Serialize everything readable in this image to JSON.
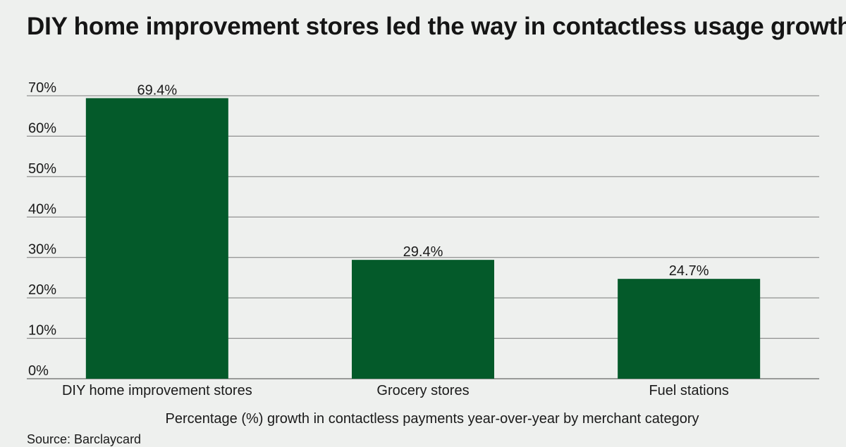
{
  "chart_data": {
    "type": "bar",
    "title": "DIY home improvement stores led the way in contactless usage growth",
    "categories": [
      "DIY home improvement stores",
      "Grocery stores",
      "Fuel stations"
    ],
    "values": [
      69.4,
      29.4,
      24.7
    ],
    "data_labels": [
      "69.4%",
      "29.4%",
      "24.7%"
    ],
    "xlabel": "Percentage (%) growth in contactless payments year-over-year by merchant category",
    "ylabel": "",
    "ylim": [
      0,
      70
    ],
    "yticks": [
      0,
      10,
      20,
      30,
      40,
      50,
      60,
      70
    ],
    "ytick_labels": [
      "0%",
      "10%",
      "20%",
      "30%",
      "40%",
      "50%",
      "60%",
      "70%"
    ],
    "grid": true,
    "legend": "none",
    "bar_color": "#045a2a",
    "source": "Source: Barclaycard"
  }
}
